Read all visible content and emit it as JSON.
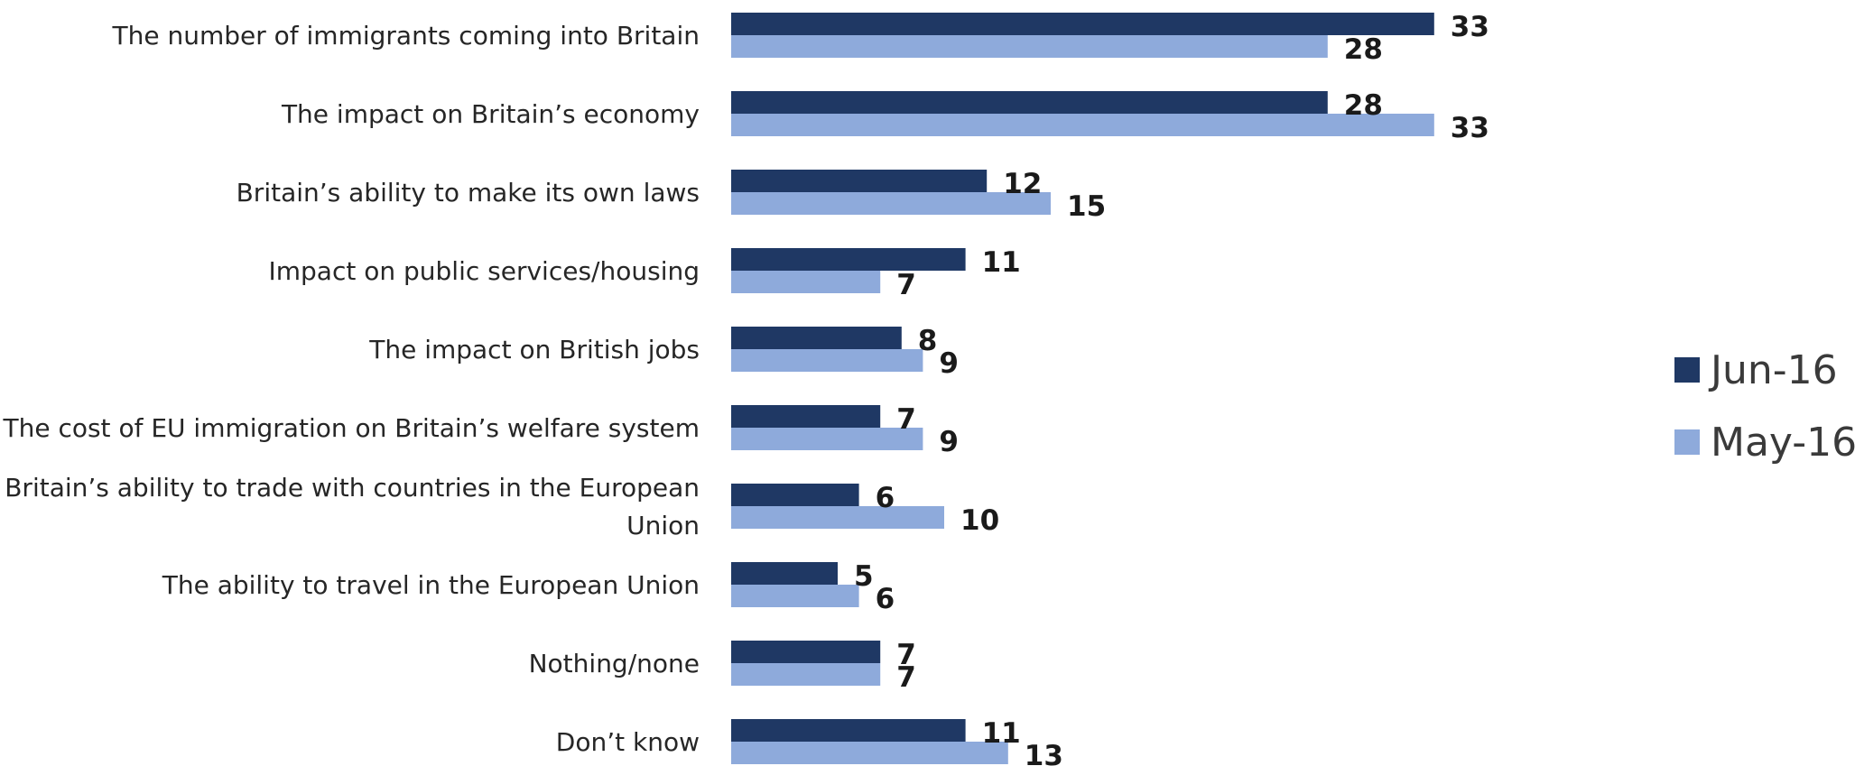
{
  "chart_data": {
    "type": "bar",
    "orientation": "horizontal",
    "categories": [
      [
        "The number of immigrants coming into Britain"
      ],
      [
        "The impact on Britain’s economy"
      ],
      [
        "Britain’s ability to make its own laws"
      ],
      [
        "Impact on public services/housing"
      ],
      [
        "The impact on British jobs"
      ],
      [
        "The cost of EU immigration on Britain’s welfare system"
      ],
      [
        "Britain’s ability to trade with countries in the European",
        "Union"
      ],
      [
        "The ability to travel in the European Union"
      ],
      [
        "Nothing/none"
      ],
      [
        "Don’t know"
      ]
    ],
    "series": [
      {
        "name": "Jun-16",
        "color": "#1f3864",
        "values": [
          33,
          28,
          12,
          11,
          8,
          7,
          6,
          5,
          7,
          11
        ]
      },
      {
        "name": "May-16",
        "color": "#8eaadb",
        "values": [
          28,
          33,
          15,
          7,
          9,
          9,
          10,
          6,
          7,
          13
        ]
      }
    ],
    "xlim": [
      0,
      33
    ],
    "grid": false,
    "legend_position": "right"
  }
}
